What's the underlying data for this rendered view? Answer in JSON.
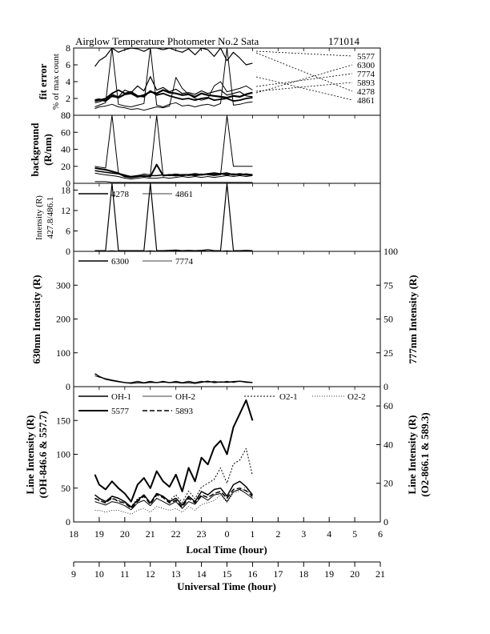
{
  "header": {
    "title": "Airglow Temperature Photometer No.2  Sata",
    "date": "171014"
  },
  "colors": {
    "ink": "#000000",
    "background": "#ffffff"
  },
  "chart_data": [
    {
      "type": "line",
      "panel": "fit-error",
      "ylabel_line1": "fit error",
      "ylabel_line2": "% of max count",
      "ylim": [
        0,
        8
      ],
      "yticks": [
        "0",
        "2",
        "4",
        "6",
        "8"
      ],
      "legend_right": [
        "5577",
        "6300",
        "7774",
        "5893",
        "4278",
        "4861"
      ],
      "x": [
        18.83,
        19.0,
        19.25,
        19.5,
        19.75,
        20.0,
        20.25,
        20.5,
        20.75,
        21.0,
        21.25,
        21.5,
        21.75,
        22.0,
        22.25,
        22.5,
        22.75,
        23.0,
        23.25,
        23.5,
        23.75,
        24.0,
        24.25,
        24.5,
        24.75,
        25.0
      ],
      "series": [
        {
          "name": "5577",
          "y": [
            5.8,
            6.5,
            7.0,
            8.0,
            7.5,
            7.8,
            8.0,
            7.9,
            7.6,
            8.0,
            8.0,
            7.8,
            8.0,
            7.7,
            7.5,
            7.9,
            7.2,
            8.0,
            7.8,
            7.0,
            8.0,
            6.5,
            7.5,
            6.8,
            6.0,
            6.2
          ],
          "width": 1.2
        },
        {
          "name": "6300",
          "y": [
            1.8,
            1.9,
            1.7,
            2.3,
            2.1,
            2.5,
            2.6,
            2.2,
            2.4,
            2.8,
            2.6,
            3.0,
            2.7,
            2.6,
            2.4,
            2.5,
            2.2,
            2.6,
            2.4,
            2.3,
            2.2,
            2.1,
            2.3,
            2.2,
            2.5,
            2.7
          ],
          "width": 2.2
        },
        {
          "name": "7774",
          "y": [
            1.5,
            1.6,
            1.9,
            2.5,
            2.2,
            3.0,
            2.7,
            3.5,
            2.9,
            4.6,
            3.0,
            3.3,
            2.8,
            3.1,
            2.6,
            2.7,
            2.5,
            2.9,
            2.6,
            2.8,
            3.0,
            2.4,
            2.6,
            2.8,
            2.3,
            2.2
          ],
          "width": 1.2
        },
        {
          "name": "5893",
          "y": [
            1.7,
            1.8,
            2.0,
            2.6,
            3.0,
            2.6,
            2.8,
            2.3,
            2.2,
            2.9,
            2.4,
            2.6,
            2.3,
            2.1,
            1.9,
            2.0,
            1.8,
            2.0,
            2.1,
            1.8,
            1.9,
            2.0,
            1.7,
            1.8,
            2.0,
            2.1
          ],
          "width": 1.8
        },
        {
          "name": "4278",
          "y": [
            1.0,
            1.2,
            1.5,
            8.0,
            1.3,
            1.1,
            1.0,
            1.2,
            1.4,
            8.0,
            1.2,
            1.0,
            1.3,
            1.5,
            1.1,
            1.2,
            1.0,
            1.2,
            1.3,
            1.1,
            1.4,
            8.0,
            1.2,
            1.3,
            1.5,
            1.6
          ],
          "width": 1.0
        },
        {
          "name": "4861",
          "y": [
            0.8,
            1.0,
            1.1,
            1.3,
            1.0,
            0.9,
            0.7,
            0.8,
            0.6,
            0.8,
            1.0,
            0.9,
            1.1,
            4.5,
            3.2,
            2.5,
            2.0,
            1.8,
            2.0,
            3.5,
            4.0,
            2.8,
            3.0,
            3.2,
            3.5,
            3.0
          ],
          "width": 1.0
        }
      ]
    },
    {
      "type": "line",
      "panel": "background",
      "ylabel_line1": "background",
      "ylabel_line2": "(R/nm)",
      "ylim": [
        0,
        80
      ],
      "yticks": [
        "0",
        "20",
        "40",
        "60",
        "80"
      ],
      "x": [
        18.83,
        19.0,
        19.25,
        19.5,
        19.75,
        20.0,
        20.25,
        20.5,
        20.75,
        21.0,
        21.25,
        21.5,
        21.75,
        22.0,
        22.25,
        22.5,
        22.75,
        23.0,
        23.25,
        23.5,
        23.75,
        24.0,
        24.25,
        24.5,
        24.75,
        25.0
      ],
      "series": [
        {
          "name": "s1",
          "y": [
            20,
            19,
            18,
            80,
            12,
            10,
            8,
            9,
            11,
            10,
            80,
            9,
            10,
            11,
            10,
            9,
            10,
            11,
            10,
            9,
            10,
            80,
            20,
            20,
            20,
            20
          ],
          "width": 1.0
        },
        {
          "name": "s2",
          "y": [
            18,
            17,
            16,
            14,
            12,
            8,
            7,
            8,
            9,
            8,
            22,
            9,
            10,
            9,
            10,
            10,
            11,
            10,
            11,
            12,
            11,
            12,
            10,
            11,
            10,
            10
          ],
          "width": 2.0
        },
        {
          "name": "s3",
          "y": [
            15,
            14,
            13,
            12,
            11,
            9,
            8,
            9,
            8,
            9,
            9,
            10,
            9,
            10,
            9,
            10,
            9,
            10,
            11,
            10,
            11,
            10,
            11,
            10,
            11,
            10
          ],
          "width": 1.5
        },
        {
          "name": "s4",
          "y": [
            12,
            11,
            10,
            9,
            8,
            6,
            5,
            6,
            7,
            6,
            6,
            7,
            6,
            7,
            8,
            7,
            8,
            7,
            8,
            7,
            8,
            9,
            8,
            9,
            8,
            9
          ],
          "width": 1.0
        },
        {
          "name": "s5",
          "y": [
            2,
            2,
            2,
            1,
            1,
            1,
            1,
            1,
            1,
            1,
            1,
            1,
            1,
            1,
            1,
            1,
            1,
            1,
            1,
            1,
            1,
            1,
            1,
            1,
            1,
            1
          ],
          "width": 1.0
        }
      ]
    },
    {
      "type": "line",
      "panel": "intensity-427-486",
      "ylabel_line1": "Intensity (R)",
      "ylabel_line2": "427.8/486.1",
      "ylim": [
        0,
        20
      ],
      "yticks": [
        "0",
        "6",
        "12",
        "18"
      ],
      "legend": [
        "4278",
        "4861"
      ],
      "x": [
        18.83,
        19.0,
        19.25,
        19.5,
        19.75,
        20.0,
        20.25,
        20.5,
        20.75,
        21.0,
        21.25,
        21.5,
        21.75,
        22.0,
        22.25,
        22.5,
        22.75,
        23.0,
        23.25,
        23.5,
        23.75,
        24.0,
        24.25,
        24.5,
        24.75,
        25.0
      ],
      "series": [
        {
          "name": "4278",
          "y": [
            0.2,
            0.2,
            0.2,
            20,
            0.2,
            0.2,
            0.2,
            0.2,
            0.2,
            20,
            0.2,
            0.2,
            0.3,
            0.4,
            0.2,
            0.3,
            0.2,
            0.3,
            0.5,
            0.2,
            0.2,
            20,
            0.2,
            0.2,
            0.3,
            0.2
          ],
          "width": 1.2
        },
        {
          "name": "4861",
          "y": [
            0.1,
            0.1,
            0.1,
            0.2,
            0.1,
            0.1,
            0.1,
            0.1,
            0.1,
            0.2,
            0.1,
            0.1,
            0.1,
            0.2,
            0.1,
            0.1,
            0.1,
            0.2,
            0.1,
            0.1,
            0.1,
            0.2,
            0.1,
            0.1,
            0.1,
            0.1
          ],
          "width": 0.8
        }
      ]
    },
    {
      "type": "line",
      "panel": "630-777",
      "ylabel": "630nm Intensity (R)",
      "ylabel_right": "777nm Intensity (R)",
      "ylim": [
        0,
        400
      ],
      "ylim_right": [
        0,
        100
      ],
      "yticks": [
        "0",
        "100",
        "200",
        "300"
      ],
      "yticks_right": [
        "0",
        "25",
        "50",
        "75",
        "100"
      ],
      "legend": [
        "6300",
        "7774"
      ],
      "x": [
        18.83,
        19.0,
        19.25,
        19.5,
        19.75,
        20.0,
        20.25,
        20.5,
        20.75,
        21.0,
        21.25,
        21.5,
        21.75,
        22.0,
        22.25,
        22.5,
        22.75,
        23.0,
        23.25,
        23.5,
        23.75,
        24.0,
        24.25,
        24.5,
        24.75,
        25.0
      ],
      "series": [
        {
          "name": "6300",
          "y": [
            38,
            30,
            22,
            18,
            15,
            12,
            10,
            12,
            11,
            13,
            12,
            14,
            12,
            13,
            11,
            12,
            10,
            13,
            16,
            12,
            14,
            13,
            15,
            16,
            14,
            12
          ],
          "width": 1.5
        },
        {
          "name": "7774",
          "y": [
            8,
            7,
            6,
            5,
            4,
            3,
            3,
            4,
            3,
            4,
            3,
            4,
            3,
            4,
            3,
            4,
            3,
            4,
            3,
            4,
            3,
            4,
            3,
            4,
            3,
            3
          ],
          "width": 0.8,
          "axis": "right"
        }
      ]
    },
    {
      "type": "line",
      "panel": "line-intensity",
      "ylabel_line1": "Line Intensity (R)",
      "ylabel_line2": "(OH-846.6 & 557.7)",
      "ylabel_right_line1": "Line Intensity (R)",
      "ylabel_right_line2": "(O2-866.1 & 589.3)",
      "ylim": [
        0,
        200
      ],
      "ylim_right": [
        0,
        70
      ],
      "yticks": [
        "0",
        "50",
        "100",
        "150"
      ],
      "yticks_right": [
        "0",
        "20",
        "40",
        "60"
      ],
      "legend": [
        "OH-1",
        "OH-2",
        "O2-1",
        "O2-2",
        "5577",
        "5893"
      ],
      "x": [
        18.83,
        19.0,
        19.25,
        19.5,
        19.75,
        20.0,
        20.25,
        20.5,
        20.75,
        21.0,
        21.25,
        21.5,
        21.75,
        22.0,
        22.25,
        22.5,
        22.75,
        23.0,
        23.25,
        23.5,
        23.75,
        24.0,
        24.25,
        24.5,
        24.75,
        25.0
      ],
      "series": [
        {
          "name": "5577",
          "y": [
            70,
            55,
            48,
            60,
            50,
            42,
            30,
            55,
            65,
            50,
            75,
            60,
            52,
            70,
            45,
            80,
            60,
            95,
            85,
            110,
            120,
            100,
            140,
            160,
            180,
            150
          ],
          "width": 2.0
        },
        {
          "name": "OH-1",
          "y": [
            40,
            35,
            30,
            38,
            35,
            30,
            22,
            32,
            40,
            28,
            42,
            38,
            30,
            35,
            25,
            38,
            30,
            45,
            40,
            48,
            50,
            38,
            55,
            60,
            52,
            40
          ],
          "width": 1.5
        },
        {
          "name": "OH-2",
          "y": [
            30,
            28,
            25,
            30,
            28,
            24,
            18,
            28,
            32,
            24,
            35,
            30,
            25,
            30,
            20,
            30,
            26,
            38,
            32,
            40,
            42,
            30,
            45,
            48,
            42,
            35
          ],
          "width": 1.0
        },
        {
          "name": "5893",
          "y": [
            35,
            32,
            28,
            36,
            30,
            28,
            20,
            30,
            38,
            26,
            40,
            36,
            28,
            32,
            22,
            35,
            28,
            40,
            36,
            42,
            45,
            35,
            48,
            50,
            46,
            38
          ],
          "width": 1.5,
          "dash": "6,3"
        },
        {
          "name": "O2-1",
          "y": [
            12,
            11,
            10,
            12,
            11,
            10,
            8,
            12,
            14,
            10,
            15,
            13,
            11,
            14,
            10,
            16,
            12,
            18,
            20,
            22,
            28,
            20,
            30,
            32,
            38,
            24
          ],
          "width": 1.0,
          "dash": "2,2",
          "axis": "right"
        },
        {
          "name": "O2-2",
          "y": [
            6,
            6,
            5,
            6,
            6,
            5,
            4,
            6,
            7,
            5,
            8,
            7,
            6,
            7,
            5,
            8,
            6,
            9,
            10,
            11,
            14,
            10,
            15,
            16,
            18,
            12
          ],
          "width": 0.8,
          "dash": "1,2",
          "axis": "right"
        }
      ]
    }
  ],
  "axes": {
    "local_time": {
      "label": "Local Time (hour)",
      "ticks": [
        "18",
        "19",
        "20",
        "21",
        "22",
        "23",
        "0",
        "1",
        "2",
        "3",
        "4",
        "5",
        "6"
      ]
    },
    "universal_time": {
      "label": "Universal Time (hour)",
      "ticks": [
        "9",
        "10",
        "11",
        "12",
        "13",
        "14",
        "15",
        "16",
        "17",
        "18",
        "19",
        "20",
        "21"
      ]
    }
  }
}
